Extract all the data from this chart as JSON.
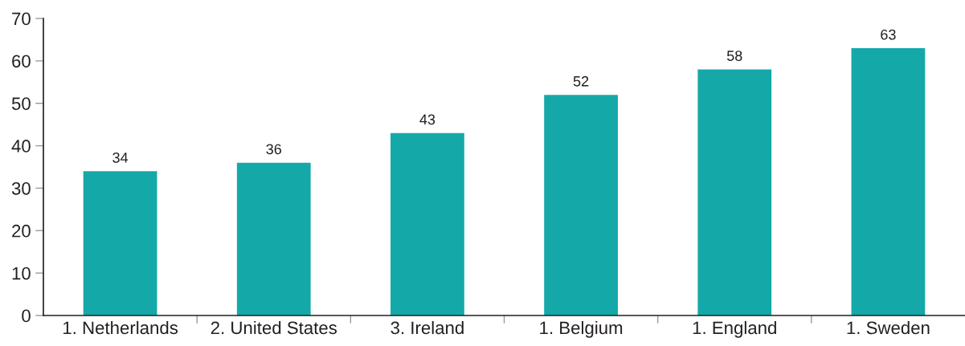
{
  "chart_data": {
    "type": "bar",
    "categories": [
      "1. Netherlands",
      "2. United States",
      "3. Ireland",
      "1. Belgium",
      "1. England",
      "1. Sweden"
    ],
    "values": [
      34,
      36,
      43,
      52,
      58,
      63
    ],
    "color": "#14a8a9",
    "ylim": [
      0,
      70
    ],
    "yticks": [
      0,
      10,
      20,
      30,
      40,
      50,
      60,
      70
    ],
    "grid": false,
    "legend": false,
    "data_labels": true
  }
}
